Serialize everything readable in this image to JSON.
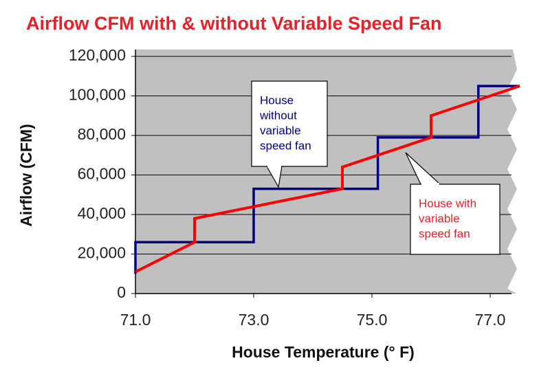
{
  "chart_data": {
    "type": "line",
    "title": "Airflow CFM with & without Variable Speed Fan",
    "x_label": "House Temperature (° F)",
    "y_label": "Airflow (CFM)",
    "xlim": [
      71,
      77.5
    ],
    "ylim": [
      0,
      120000
    ],
    "xticks": [
      {
        "value": 71,
        "label": "71.0"
      },
      {
        "value": 73,
        "label": "73.0"
      },
      {
        "value": 75,
        "label": "75.0"
      },
      {
        "value": 77,
        "label": "77.0"
      }
    ],
    "yticks": [
      0,
      {
        "value": 20000,
        "label": "20,000"
      },
      {
        "value": 40000,
        "label": "40,000"
      },
      {
        "value": 60000,
        "label": "60,000"
      },
      {
        "value": 80000,
        "label": "80,000"
      },
      {
        "value": 100000,
        "label": "100,000"
      },
      {
        "value": 120000,
        "label": "120,000"
      }
    ],
    "grid": true,
    "background": "#c0c0c0",
    "series": [
      {
        "color": "#000080",
        "x": [
          71,
          71,
          73,
          73,
          75.1,
          75.1,
          76.8,
          76.8,
          77.5
        ],
        "values": [
          10000,
          26000,
          26000,
          53000,
          53000,
          79000,
          79000,
          105000,
          105000
        ]
      },
      {
        "color": "#ff0000",
        "x": [
          71,
          72,
          72,
          74.5,
          74.5,
          76,
          76,
          77.5
        ],
        "values": [
          11000,
          26000,
          38000,
          53000,
          64000,
          79000,
          90000,
          105000
        ]
      }
    ],
    "annotations": [
      {
        "lines": [
          "House",
          "without",
          "variable",
          "speed fan"
        ],
        "color": "#000080"
      },
      {
        "lines": [
          "House with",
          "variable",
          "speed fan"
        ],
        "color": "#e8202a"
      }
    ]
  }
}
